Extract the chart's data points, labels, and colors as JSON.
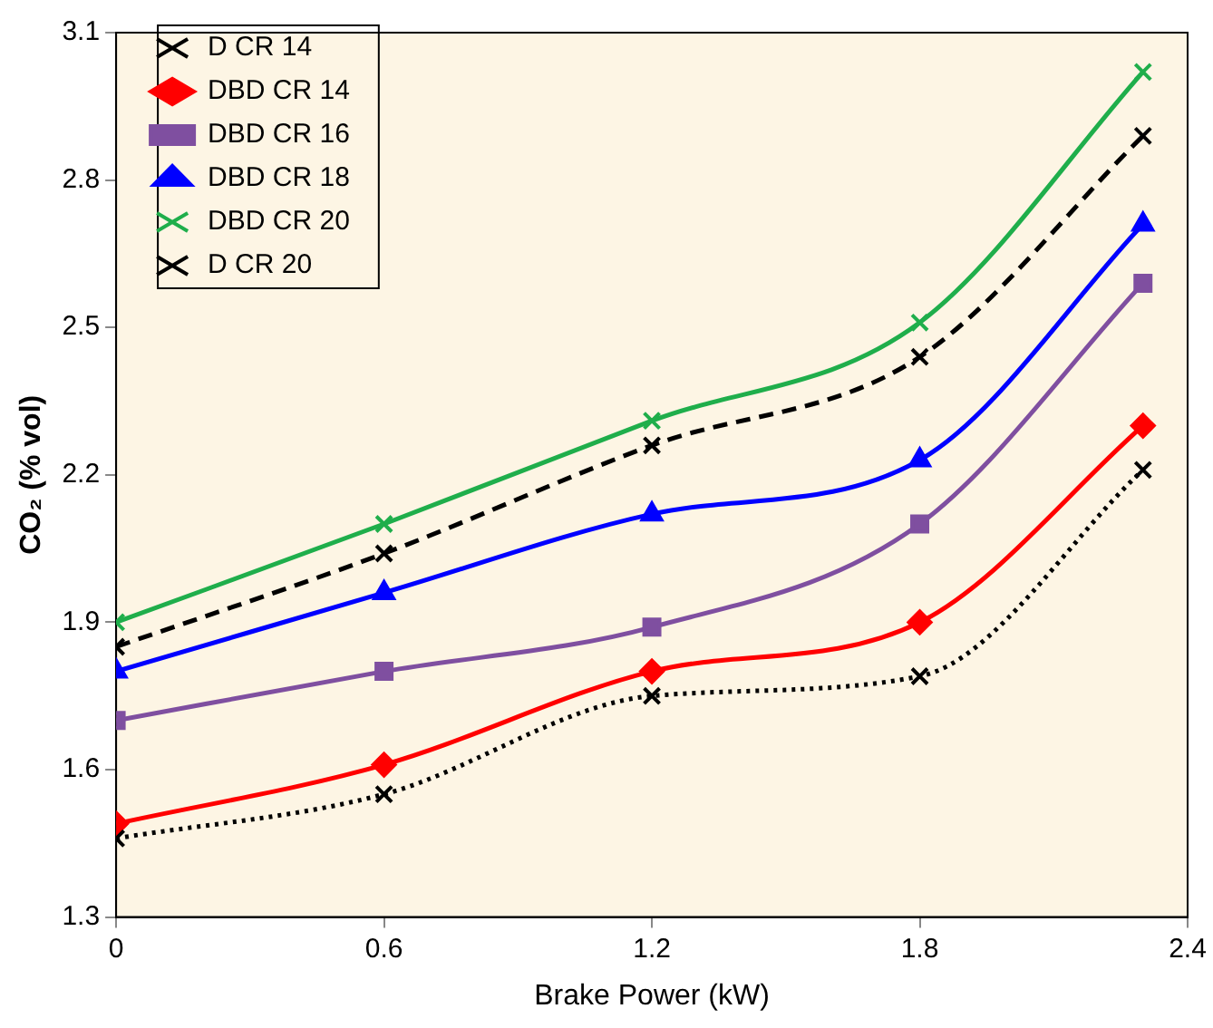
{
  "chart_data": {
    "type": "line",
    "xlabel": "Brake Power (kW)",
    "ylabel": "CO₂ (% vol)",
    "x": [
      0,
      0.6,
      1.2,
      1.8,
      2.3
    ],
    "xlim": [
      0,
      2.4
    ],
    "xticks": [
      0,
      0.6,
      1.2,
      1.8,
      2.4
    ],
    "ylim": [
      1.3,
      3.1
    ],
    "yticks": [
      1.3,
      1.6,
      1.9,
      2.2,
      2.5,
      2.8,
      3.1
    ],
    "grid": false,
    "legend": "top left",
    "series": [
      {
        "name": "D CR 14",
        "color": "#000000",
        "marker": "cross",
        "line_style": "dotted",
        "values": [
          1.46,
          1.55,
          1.75,
          1.79,
          2.21
        ]
      },
      {
        "name": "DBD CR 14",
        "color": "#ff0000",
        "marker": "diamond",
        "line_style": "solid",
        "values": [
          1.49,
          1.61,
          1.8,
          1.9,
          2.3
        ]
      },
      {
        "name": "DBD CR 16",
        "color": "#7f4fa0",
        "marker": "square",
        "line_style": "solid",
        "values": [
          1.7,
          1.8,
          1.89,
          2.1,
          2.59
        ]
      },
      {
        "name": "DBD CR 18",
        "color": "#0000ff",
        "marker": "triangle",
        "line_style": "solid",
        "values": [
          1.8,
          1.96,
          2.12,
          2.23,
          2.71
        ]
      },
      {
        "name": "DBD CR 20",
        "color": "#1fae4b",
        "marker": "cross",
        "line_style": "solid",
        "values": [
          1.9,
          2.1,
          2.31,
          2.51,
          3.02
        ]
      },
      {
        "name": "D CR 20",
        "color": "#000000",
        "marker": "cross",
        "line_style": "dashed",
        "values": [
          1.85,
          2.04,
          2.26,
          2.44,
          2.89
        ]
      }
    ]
  }
}
